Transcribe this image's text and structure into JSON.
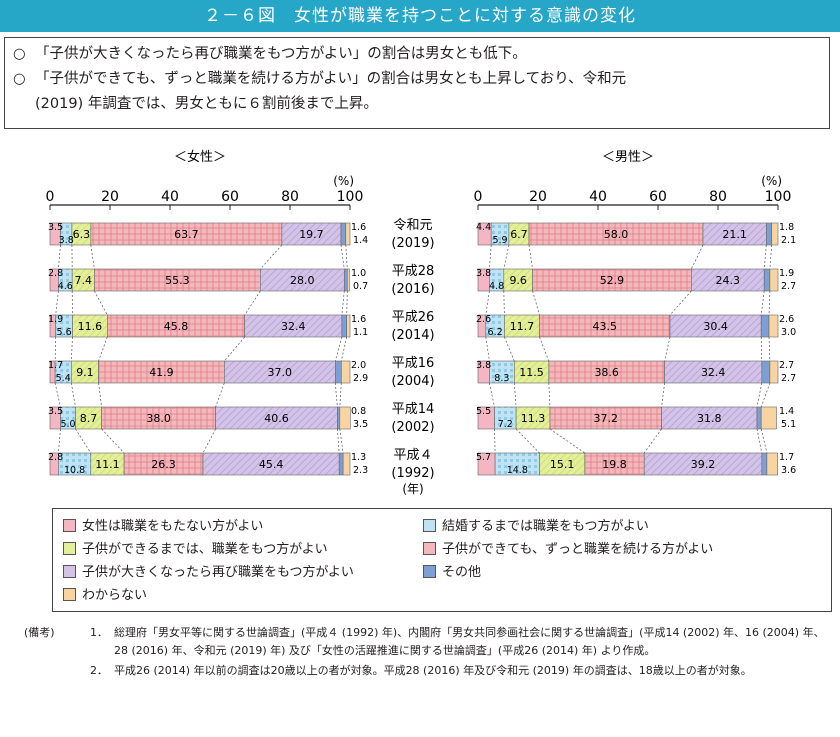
{
  "header": {
    "title": "２－６図　女性が職業を持つことに対する意識の変化"
  },
  "summary": {
    "bullet": "○",
    "line1": "「子供が大きくなったら再び職業をもつ方がよい」の割合は男女とも低下。",
    "line2": "「子供ができても、ずっと職業を続ける方がよい」の割合は男女とも上昇しており、令和元",
    "line3": "(2019) 年調査では、男女ともに６割前後まで上昇。"
  },
  "colors": {
    "c0": "#f3b6c2",
    "c1": "#bfe3f2",
    "c2": "#e3ef9c",
    "c3": "#f2b8bc",
    "c4": "#d3c3e6",
    "c5": "#7d9fd4",
    "c6": "#f8d5a0"
  },
  "chart_data": [
    {
      "type": "bar",
      "orientation": "horizontal-stacked-percent",
      "panel_title": "＜女性＞",
      "axis_unit": "(%)",
      "ticks": [
        "0",
        "20",
        "40",
        "60",
        "80",
        "100"
      ],
      "xlim": [
        0,
        100
      ],
      "categories": [
        "令和元 (2019)",
        "平成28 (2016)",
        "平成26 (2014)",
        "平成16 (2004)",
        "平成14 (2002)",
        "平成４ (1992)"
      ],
      "series": [
        {
          "name": "女性は職業をもたない方がよい",
          "values": [
            3.5,
            2.8,
            1.9,
            1.7,
            3.5,
            2.8
          ]
        },
        {
          "name": "結婚するまでは職業をもつ方がよい",
          "values": [
            3.8,
            4.6,
            5.6,
            5.4,
            5.0,
            10.8
          ]
        },
        {
          "name": "子供ができるまでは、職業をもつ方がよい",
          "values": [
            6.3,
            7.4,
            11.6,
            9.1,
            8.7,
            11.1
          ]
        },
        {
          "name": "子供ができても、ずっと職業を続ける方がよい",
          "values": [
            63.7,
            55.3,
            45.8,
            41.9,
            38.0,
            26.3
          ]
        },
        {
          "name": "子供が大きくなったら再び職業をもつ方がよい",
          "values": [
            19.7,
            28.0,
            32.4,
            37.0,
            40.6,
            45.4
          ]
        },
        {
          "name": "その他",
          "values": [
            1.6,
            1.0,
            1.6,
            2.0,
            0.8,
            1.3
          ]
        },
        {
          "name": "わからない",
          "values": [
            1.4,
            0.7,
            1.1,
            2.9,
            3.5,
            2.3
          ]
        }
      ],
      "labels": [
        [
          "3.5",
          "3.8",
          "6.3",
          "63.7",
          "19.7",
          "1.6",
          "1.4"
        ],
        [
          "2.8",
          "4.6",
          "7.4",
          "55.3",
          "28.0",
          "1.0",
          "0.7"
        ],
        [
          "1.9",
          "5.6",
          "11.6",
          "45.8",
          "32.4",
          "1.6",
          "1.1"
        ],
        [
          "1.7",
          "5.4",
          "9.1",
          "41.9",
          "37.0",
          "2.0",
          "2.9"
        ],
        [
          "3.5",
          "5.0",
          "8.7",
          "38.0",
          "40.6",
          "0.8",
          "3.5"
        ],
        [
          "2.8",
          "10.8",
          "11.1",
          "26.3",
          "45.4",
          "1.3",
          "2.3"
        ]
      ]
    },
    {
      "type": "bar",
      "orientation": "horizontal-stacked-percent",
      "panel_title": "＜男性＞",
      "axis_unit": "(%)",
      "ticks": [
        "0",
        "20",
        "40",
        "60",
        "80",
        "100"
      ],
      "xlim": [
        0,
        100
      ],
      "categories": [
        "令和元 (2019)",
        "平成28 (2016)",
        "平成26 (2014)",
        "平成16 (2004)",
        "平成14 (2002)",
        "平成４ (1992)"
      ],
      "series": [
        {
          "name": "女性は職業をもたない方がよい",
          "values": [
            4.4,
            3.8,
            2.6,
            3.8,
            5.5,
            5.7
          ]
        },
        {
          "name": "結婚するまでは職業をもつ方がよい",
          "values": [
            5.9,
            4.8,
            6.2,
            8.3,
            7.2,
            14.8
          ]
        },
        {
          "name": "子供ができるまでは、職業をもつ方がよい",
          "values": [
            6.7,
            9.6,
            11.7,
            11.5,
            11.3,
            15.1
          ]
        },
        {
          "name": "子供ができても、ずっと職業を続ける方がよい",
          "values": [
            58.0,
            52.9,
            43.5,
            38.6,
            37.2,
            19.8
          ]
        },
        {
          "name": "子供が大きくなったら再び職業をもつ方がよい",
          "values": [
            21.1,
            24.3,
            30.4,
            32.4,
            31.8,
            39.2
          ]
        },
        {
          "name": "その他",
          "values": [
            1.8,
            1.9,
            2.6,
            2.7,
            1.4,
            1.7
          ]
        },
        {
          "name": "わからない",
          "values": [
            2.1,
            2.7,
            3.0,
            2.7,
            5.1,
            3.6
          ]
        }
      ],
      "labels": [
        [
          "4.4",
          "5.9",
          "6.7",
          "58.0",
          "21.1",
          "1.8",
          "2.1"
        ],
        [
          "3.8",
          "4.8",
          "9.6",
          "52.9",
          "24.3",
          "1.9",
          "2.7"
        ],
        [
          "2.6",
          "6.2",
          "11.7",
          "43.5",
          "30.4",
          "2.6",
          "3.0"
        ],
        [
          "3.8",
          "8.3",
          "11.5",
          "38.6",
          "32.4",
          "2.7",
          "2.7"
        ],
        [
          "5.5",
          "7.2",
          "11.3",
          "37.2",
          "31.8",
          "1.4",
          "5.1"
        ],
        [
          "5.7",
          "14.8",
          "15.1",
          "19.8",
          "39.2",
          "1.7",
          "3.6"
        ]
      ]
    }
  ],
  "year_labels": [
    {
      "era": "令和元",
      "year": "(2019)"
    },
    {
      "era": "平成28",
      "year": "(2016)"
    },
    {
      "era": "平成26",
      "year": "(2014)"
    },
    {
      "era": "平成16",
      "year": "(2004)"
    },
    {
      "era": "平成14",
      "year": "(2002)"
    },
    {
      "era": "平成４",
      "year": "(1992)"
    }
  ],
  "year_unit": "(年)",
  "legend": [
    {
      "label": "女性は職業をもたない方がよい",
      "color": "#f3b6c2"
    },
    {
      "label": "結婚するまでは職業をもつ方がよい",
      "color": "#bfe3f2"
    },
    {
      "label": "子供ができるまでは、職業をもつ方がよい",
      "color": "#e3ef9c"
    },
    {
      "label": "子供ができても、ずっと職業を続ける方がよい",
      "color": "#f2b8bc"
    },
    {
      "label": "子供が大きくなったら再び職業をもつ方がよい",
      "color": "#d3c3e6"
    },
    {
      "label": "その他",
      "color": "#7d9fd4"
    },
    {
      "label": "わからない",
      "color": "#f8d5a0"
    }
  ],
  "notes": {
    "head": "(備考)",
    "n1_num": "1．",
    "n1_text": "総理府「男女平等に関する世論調査」(平成４ (1992) 年)、内閣府「男女共同参画社会に関する世論調査」(平成14 (2002) 年、16 (2004) 年、28 (2016) 年、令和元 (2019) 年) 及び「女性の活躍推進に関する世論調査」(平成26 (2014) 年) より作成。",
    "n2_num": "2．",
    "n2_text": "平成26 (2014) 年以前の調査は20歳以上の者が対象。平成28 (2016) 年及び令和元 (2019) 年の調査は、18歳以上の者が対象。"
  }
}
